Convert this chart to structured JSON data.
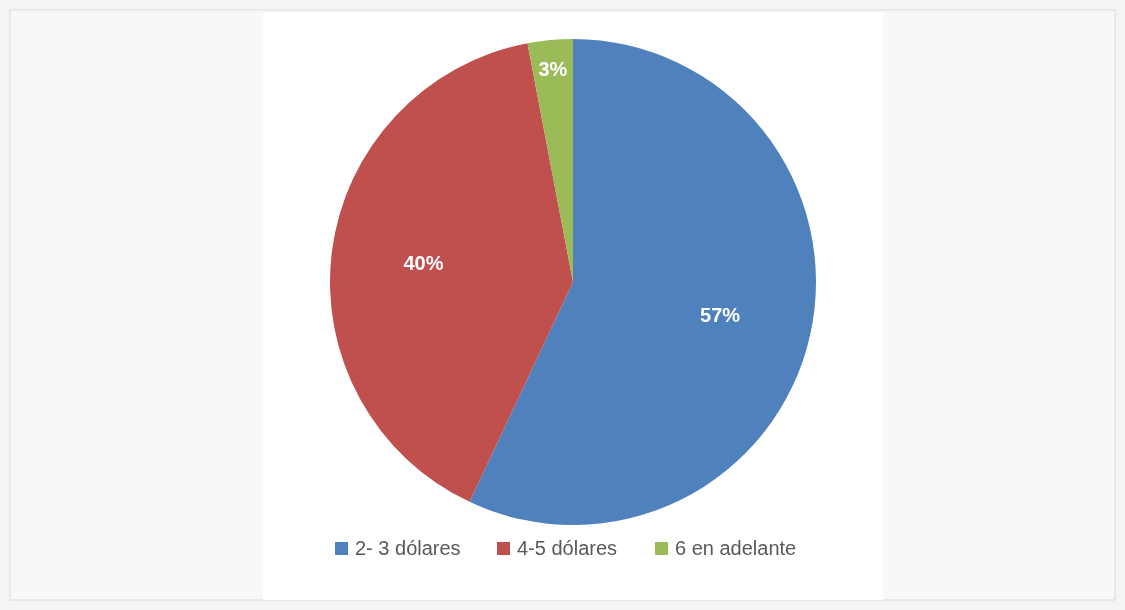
{
  "chart_data": {
    "type": "pie",
    "categories": [
      "2- 3 dólares",
      "4-5 dólares",
      "6 en adelante"
    ],
    "values": [
      57,
      40,
      3
    ],
    "colors": [
      "#4f81bd",
      "#c0504d",
      "#9bbb59"
    ],
    "value_labels": [
      "57%",
      "40%",
      "3%"
    ],
    "legend": "bottom"
  }
}
